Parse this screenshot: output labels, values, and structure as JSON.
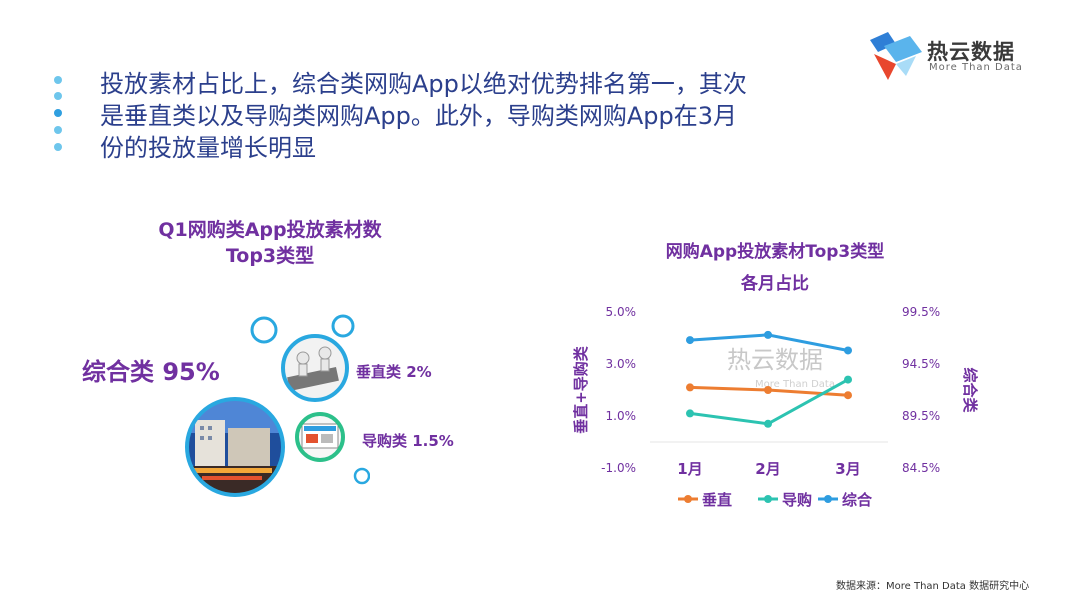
{
  "logo": {
    "name_cn": "热云数据",
    "name_en": "More Than Data"
  },
  "headline": {
    "lines": [
      "投放素材占比上，综合类网购App以绝对优势排名第一，其次",
      "是垂直类以及导购类网购App。此外，导购类网购App在3月",
      "份的投放量增长明显"
    ]
  },
  "left_chart": {
    "title_line1": "Q1网购类App投放素材数",
    "title_line2": "Top3类型",
    "items": [
      {
        "label": "综合类 95%",
        "icon": "city-mall-image"
      },
      {
        "label": "垂直类 2%",
        "icon": "figures-image"
      },
      {
        "label": "导购类 1.5%",
        "icon": "shopping-site-image"
      }
    ]
  },
  "chart_data": {
    "type": "line",
    "title": "网购App投放素材Top3类型各月占比",
    "title_line1": "网购App投放素材Top3类型",
    "title_line2": "各月占比",
    "categories": [
      "1月",
      "2月",
      "3月"
    ],
    "left_axis": {
      "label": "垂直+导购类",
      "range": [
        -1.0,
        5.0
      ],
      "ticks": [
        "5.0%",
        "3.0%",
        "1.0%",
        "-1.0%"
      ]
    },
    "right_axis": {
      "label": "综合类",
      "range": [
        84.5,
        99.5
      ],
      "ticks": [
        "99.5%",
        "94.5%",
        "89.5%",
        "84.5%"
      ]
    },
    "series": [
      {
        "name": "垂直",
        "axis": "left",
        "color": "#ed7d31",
        "values": [
          2.1,
          2.0,
          1.8
        ]
      },
      {
        "name": "导购",
        "axis": "left",
        "color": "#2cc3b1",
        "values": [
          1.1,
          0.7,
          2.4
        ]
      },
      {
        "name": "综合",
        "axis": "right",
        "color": "#2e9de0",
        "values": [
          96.8,
          97.3,
          95.8
        ]
      }
    ],
    "watermark_cn": "热云数据",
    "watermark_en": "More Than Data"
  },
  "source": "数据来源：More Than Data 数据研究中心"
}
